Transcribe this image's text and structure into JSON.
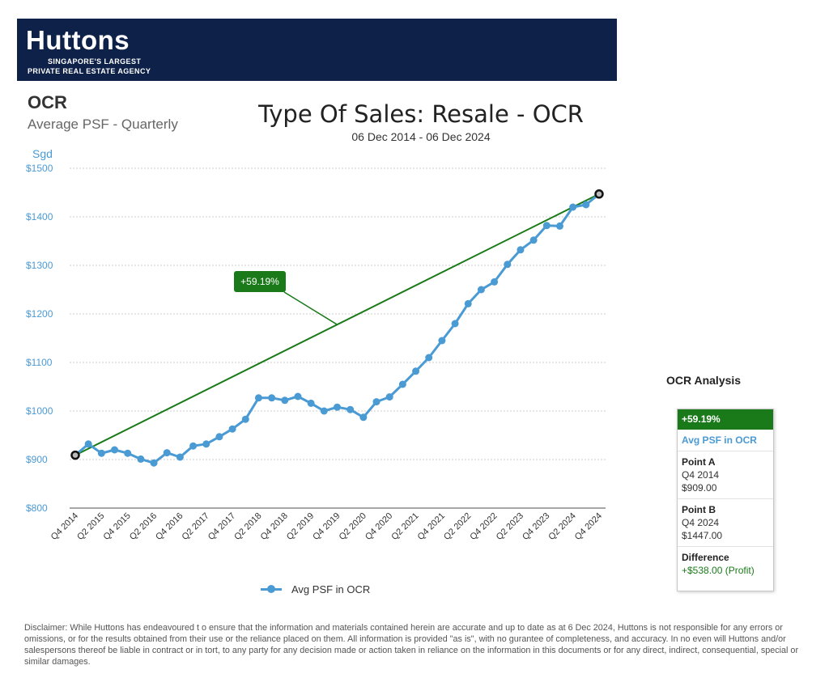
{
  "brand": {
    "name": "Huttons",
    "tagline_1": "SINGAPORE'S LARGEST",
    "tagline_2": "PRIVATE REAL ESTATE AGENCY"
  },
  "panel": {
    "title": "OCR",
    "subtitle": "Average PSF - Quarterly"
  },
  "header": {
    "title": "Type Of Sales: Resale - OCR",
    "date_range": "06 Dec 2014 - 06 Dec 2024"
  },
  "colors": {
    "series": "#4a9ad4",
    "trend": "#1a7a1a",
    "axis_text": "#4a9ad4"
  },
  "chart_data": {
    "type": "line",
    "title": "Type Of Sales: Resale - OCR",
    "ylabel": "Sgd",
    "xlabel": "",
    "ylim": [
      800,
      1500
    ],
    "yticks": [
      800,
      900,
      1000,
      1100,
      1200,
      1300,
      1400,
      1500
    ],
    "ytick_labels": [
      "$800",
      "$900",
      "$1000",
      "$1100",
      "$1200",
      "$1300",
      "$1400",
      "$1500"
    ],
    "x_labels": [
      "Q4 2014",
      "Q2 2015",
      "Q4 2015",
      "Q2 2016",
      "Q4 2016",
      "Q2 2017",
      "Q4 2017",
      "Q2 2018",
      "Q4 2018",
      "Q2 2019",
      "Q4 2019",
      "Q2 2020",
      "Q4 2020",
      "Q2 2021",
      "Q4 2021",
      "Q2 2022",
      "Q4 2022",
      "Q2 2023",
      "Q4 2023",
      "Q2 2024",
      "Q4 2024"
    ],
    "x": [
      "Q4 2014",
      "Q1 2015",
      "Q2 2015",
      "Q3 2015",
      "Q4 2015",
      "Q1 2016",
      "Q2 2016",
      "Q3 2016",
      "Q4 2016",
      "Q1 2017",
      "Q2 2017",
      "Q3 2017",
      "Q4 2017",
      "Q1 2018",
      "Q2 2018",
      "Q3 2018",
      "Q4 2018",
      "Q1 2019",
      "Q2 2019",
      "Q3 2019",
      "Q4 2019",
      "Q1 2020",
      "Q2 2020",
      "Q3 2020",
      "Q4 2020",
      "Q1 2021",
      "Q2 2021",
      "Q3 2021",
      "Q4 2021",
      "Q1 2022",
      "Q2 2022",
      "Q3 2022",
      "Q4 2022",
      "Q1 2023",
      "Q2 2023",
      "Q3 2023",
      "Q4 2023",
      "Q1 2024",
      "Q2 2024",
      "Q3 2024",
      "Q4 2024"
    ],
    "series": [
      {
        "name": "Avg PSF in OCR",
        "values": [
          909,
          932,
          913,
          920,
          913,
          901,
          893,
          914,
          905,
          928,
          932,
          947,
          963,
          983,
          1027,
          1027,
          1022,
          1030,
          1016,
          1000,
          1008,
          1003,
          987,
          1019,
          1029,
          1055,
          1082,
          1110,
          1145,
          1180,
          1221,
          1250,
          1266,
          1302,
          1332,
          1352,
          1382,
          1381,
          1420,
          1425,
          1447
        ]
      }
    ],
    "trend": {
      "label": "+59.19%",
      "from": 909,
      "to": 1447
    },
    "grid": true,
    "legend": "bottom"
  },
  "legend": {
    "label": "Avg PSF in OCR"
  },
  "analysis": {
    "title": "OCR Analysis",
    "pct": "+59.19%",
    "series": "Avg PSF in OCR",
    "point_a_label": "Point A",
    "point_a_period": "Q4 2014",
    "point_a_value": "$909.00",
    "point_b_label": "Point B",
    "point_b_period": "Q4 2024",
    "point_b_value": "$1447.00",
    "difference_label": "Difference",
    "difference_value": "+$538.00 (Profit)"
  },
  "disclaimer": "Disclaimer: While Huttons has endeavoured t o ensure that the information and materials contained herein are accurate and up to date as at 6 Dec 2024, Huttons is not responsible for any errors or omissions, or for the results obtained from their use or the reliance placed on them. All information is provided \"as is\", with no gurantee of completeness, and accuracy. In no even will Huttons and/or salespersons thereof be liable in contract or in tort, to any party for any decision made or action taken in reliance on the information in this documents or for any direct, indirect, consequential, special or similar damages."
}
